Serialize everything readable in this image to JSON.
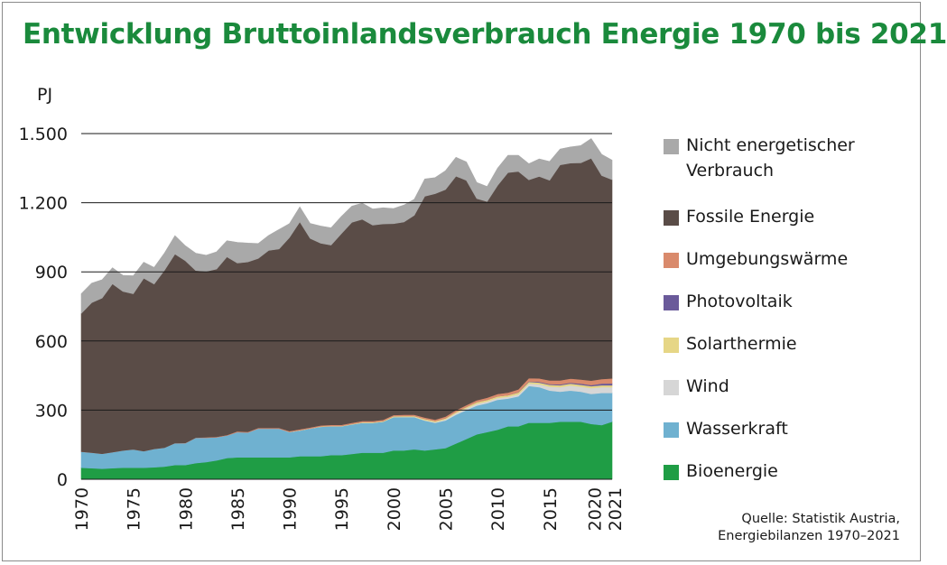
{
  "header": {
    "title": "Entwicklung Bruttoinlandsverbrauch Energie 1970 bis 2021",
    "unit": "PJ"
  },
  "source": {
    "line1": "Quelle: Statistik Austria,",
    "line2": "Energiebilanzen 1970–2021"
  },
  "colors": {
    "title": "#1a8a3c",
    "bioenergie": "#1f9d45",
    "wasserkraft": "#6fb1d0",
    "wind": "#d6d6d6",
    "solarthermie": "#e6d686",
    "photovoltaik": "#6a5a9a",
    "umgebungswaerme": "#d98a6c",
    "fossile": "#5a4c47",
    "nicht_energetisch": "#a9a9a9"
  },
  "chart_data": {
    "type": "area",
    "stacked": true,
    "ylabel": "PJ",
    "ylim": [
      0,
      1500
    ],
    "yticks": [
      0,
      300,
      600,
      900,
      1200,
      1500
    ],
    "ytick_labels": [
      "0",
      "300",
      "600",
      "900",
      "1.200",
      "1.500"
    ],
    "xlim": [
      1970,
      2021
    ],
    "xticks": [
      1970,
      1975,
      1980,
      1985,
      1990,
      1995,
      2000,
      2005,
      2010,
      2015,
      2020,
      2021
    ],
    "xtick_labels": [
      "1970",
      "1975",
      "1980",
      "1985",
      "1990",
      "1995",
      "2000",
      "2005",
      "2010",
      "2015",
      "2020",
      "2021"
    ],
    "grid": "horizontal",
    "legend_position": "right",
    "x": [
      1970,
      1971,
      1972,
      1973,
      1974,
      1975,
      1976,
      1977,
      1978,
      1979,
      1980,
      1981,
      1982,
      1983,
      1984,
      1985,
      1986,
      1987,
      1988,
      1989,
      1990,
      1991,
      1992,
      1993,
      1994,
      1995,
      1996,
      1997,
      1998,
      1999,
      2000,
      2001,
      2002,
      2003,
      2004,
      2005,
      2006,
      2007,
      2008,
      2009,
      2010,
      2011,
      2012,
      2013,
      2014,
      2015,
      2016,
      2017,
      2018,
      2019,
      2020,
      2021
    ],
    "series": [
      {
        "name": "Bioenergie",
        "color_key": "bioenergie",
        "values": [
          50,
          48,
          46,
          48,
          50,
          50,
          50,
          52,
          55,
          62,
          62,
          70,
          75,
          82,
          92,
          95,
          95,
          95,
          95,
          95,
          95,
          100,
          100,
          100,
          105,
          105,
          110,
          115,
          115,
          115,
          125,
          125,
          130,
          125,
          130,
          135,
          155,
          175,
          195,
          205,
          215,
          230,
          230,
          245,
          245,
          245,
          250,
          250,
          250,
          240,
          235,
          250
        ]
      },
      {
        "name": "Wasserkraft",
        "color_key": "wasserkraft",
        "values": [
          70,
          68,
          65,
          70,
          75,
          80,
          72,
          80,
          82,
          95,
          95,
          110,
          105,
          100,
          98,
          110,
          108,
          125,
          125,
          125,
          110,
          112,
          120,
          128,
          125,
          125,
          128,
          130,
          130,
          135,
          145,
          145,
          140,
          130,
          115,
          120,
          125,
          125,
          125,
          125,
          130,
          120,
          130,
          160,
          155,
          140,
          130,
          135,
          130,
          130,
          140,
          125
        ]
      },
      {
        "name": "Wind",
        "color_key": "wind",
        "values": [
          0,
          0,
          0,
          0,
          0,
          0,
          0,
          0,
          0,
          0,
          0,
          0,
          0,
          0,
          0,
          0,
          0,
          0,
          0,
          0,
          0,
          0,
          0,
          0,
          0,
          0,
          0,
          0,
          0,
          0,
          0,
          1,
          1,
          2,
          3,
          5,
          7,
          8,
          8,
          8,
          8,
          8,
          9,
          10,
          12,
          17,
          20,
          22,
          22,
          26,
          25,
          25
        ]
      },
      {
        "name": "Solarthermie",
        "color_key": "solarthermie",
        "values": [
          0,
          0,
          0,
          0,
          0,
          0,
          0,
          0,
          0,
          0,
          0,
          0,
          0,
          0,
          0,
          0,
          0,
          0,
          0,
          0,
          1,
          1,
          1,
          2,
          2,
          2,
          2,
          3,
          3,
          3,
          4,
          4,
          4,
          5,
          5,
          5,
          6,
          6,
          7,
          7,
          7,
          7,
          8,
          8,
          8,
          8,
          8,
          8,
          8,
          8,
          8,
          8
        ]
      },
      {
        "name": "Photovoltaik",
        "color_key": "photovoltaik",
        "values": [
          0,
          0,
          0,
          0,
          0,
          0,
          0,
          0,
          0,
          0,
          0,
          0,
          0,
          0,
          0,
          0,
          0,
          0,
          0,
          0,
          0,
          0,
          0,
          0,
          0,
          0,
          0,
          0,
          0,
          0,
          0,
          0,
          0,
          0,
          0,
          0,
          0,
          0,
          0,
          0,
          0,
          0,
          1,
          2,
          3,
          3,
          4,
          4,
          5,
          5,
          7,
          8
        ]
      },
      {
        "name": "Umgebungswärme",
        "color_key": "umgebungswaerme",
        "values": [
          0,
          0,
          0,
          0,
          0,
          0,
          0,
          0,
          0,
          0,
          1,
          1,
          2,
          2,
          2,
          3,
          3,
          3,
          3,
          3,
          3,
          4,
          4,
          4,
          4,
          4,
          5,
          5,
          5,
          5,
          5,
          5,
          5,
          6,
          6,
          7,
          7,
          8,
          8,
          9,
          10,
          11,
          12,
          14,
          15,
          16,
          17,
          18,
          18,
          19,
          20,
          22
        ]
      },
      {
        "name": "Fossile Energie",
        "color_key": "fossile",
        "values": [
          600,
          650,
          675,
          730,
          690,
          675,
          750,
          715,
          770,
          820,
          790,
          725,
          720,
          728,
          773,
          730,
          737,
          735,
          770,
          776,
          840,
          900,
          820,
          790,
          780,
          830,
          870,
          875,
          850,
          850,
          830,
          836,
          865,
          960,
          980,
          985,
          1015,
          975,
          875,
          851,
          905,
          955,
          946,
          860,
          876,
          868,
          935,
          935,
          940,
          965,
          883,
          862
        ]
      },
      {
        "name": "Nicht energetischer Verbrauch",
        "color_key": "nicht_energetisch",
        "values": [
          85,
          85,
          80,
          70,
          70,
          78,
          70,
          72,
          75,
          80,
          65,
          75,
          70,
          75,
          70,
          90,
          82,
          65,
          65,
          85,
          60,
          65,
          65,
          75,
          75,
          75,
          70,
          70,
          70,
          70,
          66,
          74,
          70,
          75,
          70,
          82,
          82,
          80,
          70,
          65,
          75,
          75,
          70,
          70,
          76,
          82,
          69,
          70,
          75,
          85,
          92,
          85
        ]
      }
    ]
  }
}
